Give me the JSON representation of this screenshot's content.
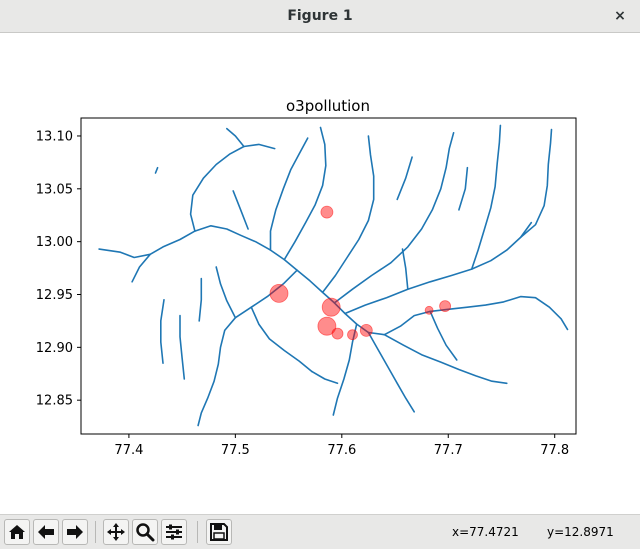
{
  "window": {
    "title": "Figure 1",
    "close_glyph": "×"
  },
  "chart_data": {
    "type": "scatter",
    "title": "o3pollution",
    "xlabel": "",
    "ylabel": "",
    "xlim": [
      77.355,
      77.82
    ],
    "ylim": [
      12.818,
      13.117
    ],
    "xticks": [
      77.4,
      77.5,
      77.6,
      77.7,
      77.8
    ],
    "xtick_labels": [
      "77.4",
      "77.5",
      "77.6",
      "77.7",
      "77.8"
    ],
    "yticks": [
      12.85,
      12.9,
      12.95,
      13.0,
      13.05,
      13.1
    ],
    "ytick_labels": [
      "12.85",
      "12.90",
      "12.95",
      "13.00",
      "13.05",
      "13.10"
    ],
    "grid": false,
    "river_color": "#1f77b4",
    "point_color": "#ff0000",
    "points": [
      {
        "x": 77.586,
        "y": 13.028,
        "size": 6
      },
      {
        "x": 77.541,
        "y": 12.951,
        "size": 9
      },
      {
        "x": 77.59,
        "y": 12.938,
        "size": 9
      },
      {
        "x": 77.586,
        "y": 12.92,
        "size": 9
      },
      {
        "x": 77.596,
        "y": 12.913,
        "size": 5.5
      },
      {
        "x": 77.61,
        "y": 12.912,
        "size": 5
      },
      {
        "x": 77.623,
        "y": 12.916,
        "size": 6
      },
      {
        "x": 77.682,
        "y": 12.935,
        "size": 4
      },
      {
        "x": 77.697,
        "y": 12.939,
        "size": 5.5
      }
    ],
    "rivers": [
      [
        [
          77.372,
          12.993
        ],
        [
          77.392,
          12.99
        ],
        [
          77.405,
          12.985
        ],
        [
          77.42,
          12.988
        ],
        [
          77.432,
          12.995
        ],
        [
          77.448,
          13.002
        ],
        [
          77.462,
          13.01
        ],
        [
          77.477,
          13.015
        ],
        [
          77.492,
          13.012
        ],
        [
          77.505,
          13.006
        ],
        [
          77.519,
          13.0
        ],
        [
          77.533,
          12.992
        ],
        [
          77.546,
          12.983
        ],
        [
          77.558,
          12.973
        ],
        [
          77.57,
          12.963
        ],
        [
          77.582,
          12.952
        ],
        [
          77.593,
          12.942
        ],
        [
          77.603,
          12.932
        ],
        [
          77.614,
          12.922
        ],
        [
          77.625,
          12.914
        ],
        [
          77.64,
          12.912
        ]
      ],
      [
        [
          77.64,
          12.912
        ],
        [
          77.655,
          12.92
        ],
        [
          77.668,
          12.93
        ],
        [
          77.683,
          12.934
        ],
        [
          77.7,
          12.936
        ],
        [
          77.718,
          12.938
        ],
        [
          77.735,
          12.94
        ],
        [
          77.752,
          12.943
        ],
        [
          77.768,
          12.948
        ],
        [
          77.782,
          12.947
        ],
        [
          77.795,
          12.938
        ],
        [
          77.806,
          12.927
        ],
        [
          77.812,
          12.917
        ]
      ],
      [
        [
          77.42,
          12.988
        ],
        [
          77.41,
          12.976
        ],
        [
          77.403,
          12.962
        ]
      ],
      [
        [
          77.462,
          13.01
        ],
        [
          77.458,
          13.026
        ],
        [
          77.46,
          13.044
        ],
        [
          77.47,
          13.06
        ],
        [
          77.482,
          13.073
        ],
        [
          77.495,
          13.083
        ],
        [
          77.508,
          13.09
        ],
        [
          77.522,
          13.092
        ],
        [
          77.537,
          13.088
        ]
      ],
      [
        [
          77.508,
          13.09
        ],
        [
          77.5,
          13.1
        ],
        [
          77.492,
          13.107
        ]
      ],
      [
        [
          77.533,
          12.992
        ],
        [
          77.533,
          13.01
        ],
        [
          77.538,
          13.03
        ],
        [
          77.545,
          13.05
        ],
        [
          77.552,
          13.068
        ],
        [
          77.56,
          13.083
        ],
        [
          77.568,
          13.098
        ]
      ],
      [
        [
          77.546,
          12.983
        ],
        [
          77.556,
          13.0
        ],
        [
          77.566,
          13.018
        ],
        [
          77.575,
          13.035
        ],
        [
          77.582,
          13.053
        ],
        [
          77.585,
          13.072
        ],
        [
          77.584,
          13.092
        ],
        [
          77.58,
          13.108
        ]
      ],
      [
        [
          77.582,
          12.952
        ],
        [
          77.594,
          12.968
        ],
        [
          77.605,
          12.985
        ],
        [
          77.616,
          13.002
        ],
        [
          77.625,
          13.02
        ],
        [
          77.63,
          13.04
        ],
        [
          77.63,
          13.062
        ],
        [
          77.627,
          13.082
        ],
        [
          77.625,
          13.1
        ]
      ],
      [
        [
          77.593,
          12.942
        ],
        [
          77.61,
          12.955
        ],
        [
          77.628,
          12.968
        ],
        [
          77.646,
          12.98
        ],
        [
          77.662,
          12.995
        ],
        [
          77.675,
          13.012
        ],
        [
          77.685,
          13.03
        ],
        [
          77.693,
          13.05
        ],
        [
          77.698,
          13.07
        ],
        [
          77.701,
          13.088
        ],
        [
          77.705,
          13.103
        ]
      ],
      [
        [
          77.603,
          12.932
        ],
        [
          77.622,
          12.94
        ],
        [
          77.642,
          12.947
        ],
        [
          77.662,
          12.955
        ],
        [
          77.683,
          12.962
        ],
        [
          77.703,
          12.968
        ],
        [
          77.722,
          12.974
        ],
        [
          77.74,
          12.982
        ],
        [
          77.755,
          12.992
        ],
        [
          77.768,
          13.004
        ],
        [
          77.778,
          13.018
        ]
      ],
      [
        [
          77.722,
          12.974
        ],
        [
          77.728,
          12.992
        ],
        [
          77.734,
          13.012
        ],
        [
          77.74,
          13.032
        ],
        [
          77.744,
          13.052
        ],
        [
          77.746,
          13.074
        ],
        [
          77.748,
          13.094
        ],
        [
          77.749,
          13.11
        ]
      ],
      [
        [
          77.768,
          13.004
        ],
        [
          77.782,
          13.016
        ],
        [
          77.79,
          13.034
        ],
        [
          77.793,
          13.053
        ],
        [
          77.794,
          13.073
        ],
        [
          77.796,
          13.093
        ],
        [
          77.797,
          13.106
        ]
      ],
      [
        [
          77.662,
          12.955
        ],
        [
          77.66,
          12.975
        ],
        [
          77.657,
          12.993
        ]
      ],
      [
        [
          77.558,
          12.973
        ],
        [
          77.545,
          12.96
        ],
        [
          77.53,
          12.948
        ],
        [
          77.515,
          12.938
        ],
        [
          77.5,
          12.928
        ],
        [
          77.49,
          12.916
        ],
        [
          77.486,
          12.9
        ],
        [
          77.484,
          12.884
        ],
        [
          77.48,
          12.868
        ],
        [
          77.474,
          12.852
        ],
        [
          77.468,
          12.838
        ],
        [
          77.465,
          12.826
        ]
      ],
      [
        [
          77.515,
          12.938
        ],
        [
          77.522,
          12.922
        ],
        [
          77.532,
          12.908
        ],
        [
          77.546,
          12.897
        ],
        [
          77.56,
          12.887
        ],
        [
          77.572,
          12.877
        ]
      ],
      [
        [
          77.5,
          12.928
        ],
        [
          77.492,
          12.944
        ],
        [
          77.486,
          12.96
        ],
        [
          77.482,
          12.976
        ]
      ],
      [
        [
          77.614,
          12.922
        ],
        [
          77.61,
          12.905
        ],
        [
          77.607,
          12.888
        ],
        [
          77.602,
          12.87
        ],
        [
          77.596,
          12.852
        ],
        [
          77.592,
          12.836
        ]
      ],
      [
        [
          77.625,
          12.914
        ],
        [
          77.634,
          12.898
        ],
        [
          77.643,
          12.882
        ],
        [
          77.652,
          12.866
        ],
        [
          77.66,
          12.852
        ],
        [
          77.668,
          12.839
        ]
      ],
      [
        [
          77.64,
          12.912
        ],
        [
          77.658,
          12.902
        ],
        [
          77.675,
          12.893
        ],
        [
          77.693,
          12.886
        ],
        [
          77.71,
          12.879
        ],
        [
          77.726,
          12.873
        ],
        [
          77.741,
          12.868
        ],
        [
          77.755,
          12.866
        ]
      ],
      [
        [
          77.683,
          12.934
        ],
        [
          77.69,
          12.918
        ],
        [
          77.698,
          12.902
        ],
        [
          77.708,
          12.888
        ]
      ],
      [
        [
          77.433,
          12.945
        ],
        [
          77.43,
          12.925
        ],
        [
          77.43,
          12.905
        ],
        [
          77.432,
          12.885
        ]
      ],
      [
        [
          77.448,
          12.93
        ],
        [
          77.448,
          12.91
        ],
        [
          77.45,
          12.89
        ],
        [
          77.452,
          12.87
        ]
      ],
      [
        [
          77.468,
          12.965
        ],
        [
          77.468,
          12.945
        ],
        [
          77.466,
          12.925
        ]
      ],
      [
        [
          77.572,
          12.877
        ],
        [
          77.584,
          12.87
        ],
        [
          77.596,
          12.866
        ]
      ],
      [
        [
          77.498,
          13.048
        ],
        [
          77.505,
          13.03
        ],
        [
          77.512,
          13.012
        ]
      ],
      [
        [
          77.652,
          13.04
        ],
        [
          77.66,
          13.06
        ],
        [
          77.666,
          13.08
        ]
      ],
      [
        [
          77.71,
          13.03
        ],
        [
          77.716,
          13.05
        ],
        [
          77.718,
          13.07
        ]
      ],
      [
        [
          77.425,
          13.065
        ],
        [
          77.427,
          13.07
        ]
      ]
    ]
  },
  "toolbar": {
    "buttons": [
      {
        "name": "home-button",
        "icon": "home-icon"
      },
      {
        "name": "back-button",
        "icon": "arrow-left-icon"
      },
      {
        "name": "forward-button",
        "icon": "arrow-right-icon"
      },
      {
        "name": "pan-button",
        "icon": "move-icon"
      },
      {
        "name": "zoom-button",
        "icon": "magnifier-icon"
      },
      {
        "name": "configure-subplots-button",
        "icon": "sliders-icon"
      },
      {
        "name": "save-button",
        "icon": "floppy-disk-icon"
      }
    ],
    "coord_x": "x=77.4721",
    "coord_y": "y=12.8971"
  }
}
